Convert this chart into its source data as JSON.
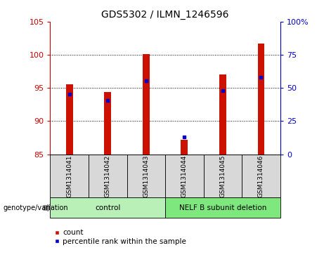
{
  "title": "GDS5302 / ILMN_1246596",
  "samples": [
    "GSM1314041",
    "GSM1314042",
    "GSM1314043",
    "GSM1314044",
    "GSM1314045",
    "GSM1314046"
  ],
  "red_values": [
    95.6,
    94.4,
    100.1,
    87.2,
    97.0,
    101.7
  ],
  "blue_values": [
    94.1,
    93.1,
    96.1,
    87.6,
    94.6,
    96.6
  ],
  "y_min": 85,
  "y_max": 105,
  "y_ticks": [
    85,
    90,
    95,
    100,
    105
  ],
  "y2_ticks": [
    0,
    25,
    50,
    75,
    100
  ],
  "groups": [
    {
      "label": "control",
      "indices": [
        0,
        1,
        2
      ],
      "color": "#b8f0b8"
    },
    {
      "label": "NELF B subunit deletion",
      "indices": [
        3,
        4,
        5
      ],
      "color": "#7ee87e"
    }
  ],
  "bar_color": "#cc1100",
  "blue_color": "#0000cc",
  "bg_color": "#d8d8d8",
  "legend_red": "count",
  "legend_blue": "percentile rank within the sample",
  "genotype_label": "genotype/variation",
  "left_label_color": "#cc0000",
  "right_label_color": "#0000cc"
}
